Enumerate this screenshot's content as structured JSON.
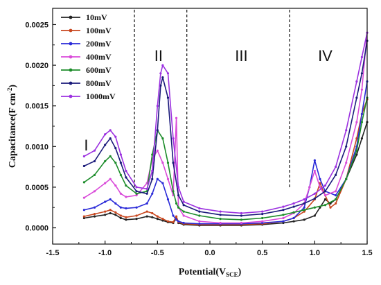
{
  "chart_data": {
    "type": "line",
    "xlabel_main": "Potential(V",
    "xlabel_sub": "SCE",
    "xlabel_close": ")",
    "ylabel": "Capacitance(F cm",
    "ylabel_sup": "-2",
    "ylabel_close": ")",
    "xlim": [
      -1.5,
      1.5
    ],
    "ylim": [
      -0.0002,
      0.0027
    ],
    "xticks": [
      "-1.5",
      "-1.0",
      "-0.5",
      "0.0",
      "0.5",
      "1.0",
      "1.5"
    ],
    "yticks": [
      "0.0000",
      "0.0005",
      "0.0010",
      "0.0015",
      "0.0020",
      "0.0025"
    ],
    "grid": false,
    "legend_position": "top-left",
    "regions": {
      "labels": [
        "I",
        "II",
        "III",
        "IV"
      ],
      "label_x": [
        -1.18,
        -0.49,
        0.3,
        1.1
      ],
      "dividers": [
        -0.72,
        -0.22,
        0.76
      ]
    },
    "series": [
      {
        "name": "10mV",
        "color": "#222222",
        "x": [
          -1.2,
          -1.1,
          -1.0,
          -0.95,
          -0.9,
          -0.85,
          -0.8,
          -0.7,
          -0.6,
          -0.55,
          -0.5,
          -0.45,
          -0.4,
          -0.35,
          -0.32,
          -0.3,
          -0.25,
          -0.1,
          0.1,
          0.3,
          0.5,
          0.7,
          0.8,
          0.9,
          1.0,
          1.05,
          1.1,
          1.15,
          1.2,
          1.3,
          1.4,
          1.45,
          1.5
        ],
        "y": [
          0.00012,
          0.00014,
          0.00016,
          0.00018,
          0.00016,
          0.00012,
          0.0001,
          0.00011,
          0.00014,
          0.00013,
          0.00011,
          9e-05,
          7e-05,
          6e-05,
          0.00012,
          6e-05,
          4e-05,
          3e-05,
          3e-05,
          3e-05,
          4e-05,
          6e-05,
          8e-05,
          0.0001,
          0.00015,
          0.00025,
          0.00035,
          0.0003,
          0.00035,
          0.0006,
          0.0009,
          0.0011,
          0.0013
        ]
      },
      {
        "name": "100mV",
        "color": "#c8461e",
        "x": [
          -1.2,
          -1.1,
          -1.0,
          -0.95,
          -0.9,
          -0.85,
          -0.8,
          -0.7,
          -0.6,
          -0.55,
          -0.5,
          -0.45,
          -0.4,
          -0.35,
          -0.32,
          -0.3,
          -0.25,
          -0.1,
          0.1,
          0.3,
          0.5,
          0.7,
          0.8,
          0.9,
          1.0,
          1.05,
          1.1,
          1.15,
          1.2,
          1.3,
          1.4,
          1.45,
          1.5
        ],
        "y": [
          0.00014,
          0.00017,
          0.0002,
          0.00022,
          0.00019,
          0.00015,
          0.00013,
          0.00015,
          0.0002,
          0.00018,
          0.00014,
          0.00011,
          8e-05,
          7e-05,
          0.00014,
          7e-05,
          5e-05,
          4e-05,
          4e-05,
          4e-05,
          5e-05,
          8e-05,
          0.00012,
          0.0002,
          0.00035,
          0.00055,
          0.0004,
          0.00025,
          0.0003,
          0.0006,
          0.0011,
          0.0014,
          0.00158
        ]
      },
      {
        "name": "200mV",
        "color": "#2a2ad8",
        "x": [
          -1.2,
          -1.1,
          -1.0,
          -0.95,
          -0.9,
          -0.85,
          -0.8,
          -0.7,
          -0.6,
          -0.55,
          -0.5,
          -0.45,
          -0.4,
          -0.35,
          -0.32,
          -0.3,
          -0.25,
          -0.1,
          0.1,
          0.3,
          0.5,
          0.7,
          0.8,
          0.9,
          0.95,
          1.0,
          1.05,
          1.1,
          1.2,
          1.3,
          1.4,
          1.45,
          1.5
        ],
        "y": [
          0.00022,
          0.00025,
          0.00032,
          0.00035,
          0.0003,
          0.00025,
          0.00024,
          0.00025,
          0.0003,
          0.00042,
          0.0006,
          0.00055,
          0.00035,
          0.00015,
          0.0001,
          8e-05,
          6e-05,
          5e-05,
          5e-05,
          5e-05,
          6e-05,
          8e-05,
          0.00012,
          0.00025,
          0.0005,
          0.00083,
          0.0006,
          0.00045,
          0.0004,
          0.0006,
          0.001,
          0.0014,
          0.0018
        ]
      },
      {
        "name": "400mV",
        "color": "#d94ad9",
        "x": [
          -1.2,
          -1.1,
          -1.0,
          -0.95,
          -0.9,
          -0.85,
          -0.8,
          -0.7,
          -0.6,
          -0.55,
          -0.5,
          -0.45,
          -0.4,
          -0.35,
          -0.32,
          -0.3,
          -0.25,
          -0.1,
          0.1,
          0.3,
          0.5,
          0.7,
          0.8,
          0.9,
          0.95,
          1.0,
          1.05,
          1.1,
          1.2,
          1.3,
          1.4,
          1.45,
          1.5
        ],
        "y": [
          0.00037,
          0.00045,
          0.00055,
          0.0006,
          0.00052,
          0.00042,
          0.00038,
          0.0004,
          0.00055,
          0.00085,
          0.00095,
          0.0008,
          0.0006,
          0.0004,
          0.00135,
          0.00025,
          0.00015,
          8e-05,
          6e-05,
          6e-05,
          8e-05,
          0.00012,
          0.00018,
          0.0003,
          0.0005,
          0.0007,
          0.0005,
          0.0004,
          0.00045,
          0.0008,
          0.0013,
          0.0017,
          0.0024
        ]
      },
      {
        "name": "600mV",
        "color": "#1c8c2a",
        "x": [
          -1.2,
          -1.1,
          -1.0,
          -0.95,
          -0.9,
          -0.85,
          -0.8,
          -0.7,
          -0.6,
          -0.55,
          -0.5,
          -0.45,
          -0.4,
          -0.35,
          -0.32,
          -0.3,
          -0.25,
          -0.1,
          0.1,
          0.3,
          0.5,
          0.7,
          0.8,
          0.9,
          1.0,
          1.1,
          1.2,
          1.3,
          1.4,
          1.45,
          1.5
        ],
        "y": [
          0.00056,
          0.00065,
          0.00082,
          0.00088,
          0.0008,
          0.00065,
          0.00052,
          0.00042,
          0.00045,
          0.0009,
          0.0012,
          0.0011,
          0.0008,
          0.00045,
          0.0003,
          0.00025,
          0.0002,
          0.00015,
          0.00011,
          0.0001,
          0.00012,
          0.00016,
          0.00019,
          0.00022,
          0.00025,
          0.00028,
          0.00035,
          0.0006,
          0.00095,
          0.0013,
          0.0016
        ]
      },
      {
        "name": "800mV",
        "color": "#1a1a7a",
        "x": [
          -1.2,
          -1.1,
          -1.0,
          -0.95,
          -0.9,
          -0.85,
          -0.8,
          -0.7,
          -0.6,
          -0.55,
          -0.5,
          -0.47,
          -0.45,
          -0.4,
          -0.35,
          -0.3,
          -0.25,
          -0.1,
          0.1,
          0.3,
          0.5,
          0.7,
          0.8,
          0.9,
          1.0,
          1.1,
          1.2,
          1.3,
          1.4,
          1.45,
          1.5
        ],
        "y": [
          0.00076,
          0.00082,
          0.00102,
          0.0011,
          0.00098,
          0.0008,
          0.00062,
          0.00045,
          0.00042,
          0.0006,
          0.0012,
          0.00175,
          0.00185,
          0.0016,
          0.0008,
          0.0004,
          0.00028,
          0.0002,
          0.00016,
          0.00015,
          0.00017,
          0.00022,
          0.00026,
          0.0003,
          0.00036,
          0.00045,
          0.00065,
          0.001,
          0.0016,
          0.0019,
          0.0023
        ]
      },
      {
        "name": "1000mV",
        "color": "#9b30e0",
        "x": [
          -1.2,
          -1.1,
          -1.0,
          -0.95,
          -0.9,
          -0.85,
          -0.8,
          -0.7,
          -0.6,
          -0.55,
          -0.5,
          -0.47,
          -0.45,
          -0.4,
          -0.35,
          -0.3,
          -0.25,
          -0.1,
          0.1,
          0.3,
          0.5,
          0.7,
          0.8,
          0.9,
          1.0,
          1.1,
          1.2,
          1.3,
          1.4,
          1.45,
          1.5
        ],
        "y": [
          0.00088,
          0.00095,
          0.00115,
          0.0012,
          0.00112,
          0.0009,
          0.0007,
          0.0005,
          0.00048,
          0.0007,
          0.0015,
          0.0019,
          0.002,
          0.0019,
          0.0011,
          0.0005,
          0.00032,
          0.00024,
          0.0002,
          0.00018,
          0.0002,
          0.00026,
          0.0003,
          0.00035,
          0.00042,
          0.00052,
          0.00075,
          0.0012,
          0.0018,
          0.0021,
          0.0024
        ]
      }
    ]
  }
}
